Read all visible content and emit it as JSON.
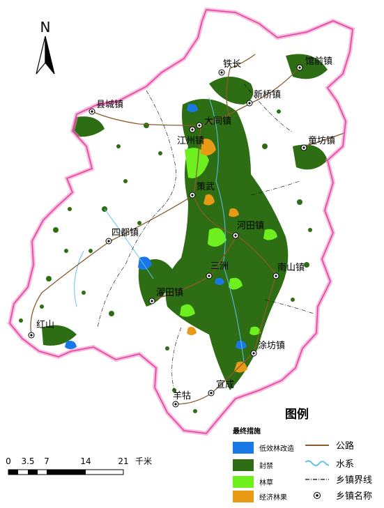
{
  "north_label": "N",
  "legend": {
    "title": "图例",
    "subtitle": "最终措施",
    "measures": [
      {
        "label": "低效林改造",
        "color": "#1a78e6"
      },
      {
        "label": "封禁",
        "color": "#2d6e14"
      },
      {
        "label": "林草",
        "color": "#6ef01e"
      },
      {
        "label": "经济林果",
        "color": "#e89a14"
      }
    ],
    "symbols": [
      {
        "label": "公路",
        "icon": "road-line-icon",
        "color": "#8b5a2b"
      },
      {
        "label": "水系",
        "icon": "river-line-icon",
        "color": "#5fc3f0"
      },
      {
        "label": "乡镇界线",
        "icon": "boundary-dashdot-icon",
        "color": "#000000"
      },
      {
        "label": "乡镇名称",
        "icon": "town-point-icon",
        "color": "#000000"
      }
    ]
  },
  "scale": {
    "ticks": [
      "0",
      "3.5",
      "7",
      "14",
      "21"
    ],
    "unit": "千米"
  },
  "towns": [
    {
      "name": "馆前镇"
    },
    {
      "name": "铁长"
    },
    {
      "name": "新桥镇"
    },
    {
      "name": "县城镇"
    },
    {
      "name": "大同镇"
    },
    {
      "name": "江州镇"
    },
    {
      "name": "童坊镇"
    },
    {
      "name": "策武"
    },
    {
      "name": "河田镇"
    },
    {
      "name": "四都镇"
    },
    {
      "name": "三洲"
    },
    {
      "name": "南山镇"
    },
    {
      "name": "濯田镇"
    },
    {
      "name": "红山"
    },
    {
      "name": "涂坊镇"
    },
    {
      "name": "宣成"
    },
    {
      "name": "羊牯"
    }
  ],
  "colors": {
    "boundary": "#e85ca8",
    "road": "#8b5a2b",
    "water": "#5fc3f0"
  }
}
